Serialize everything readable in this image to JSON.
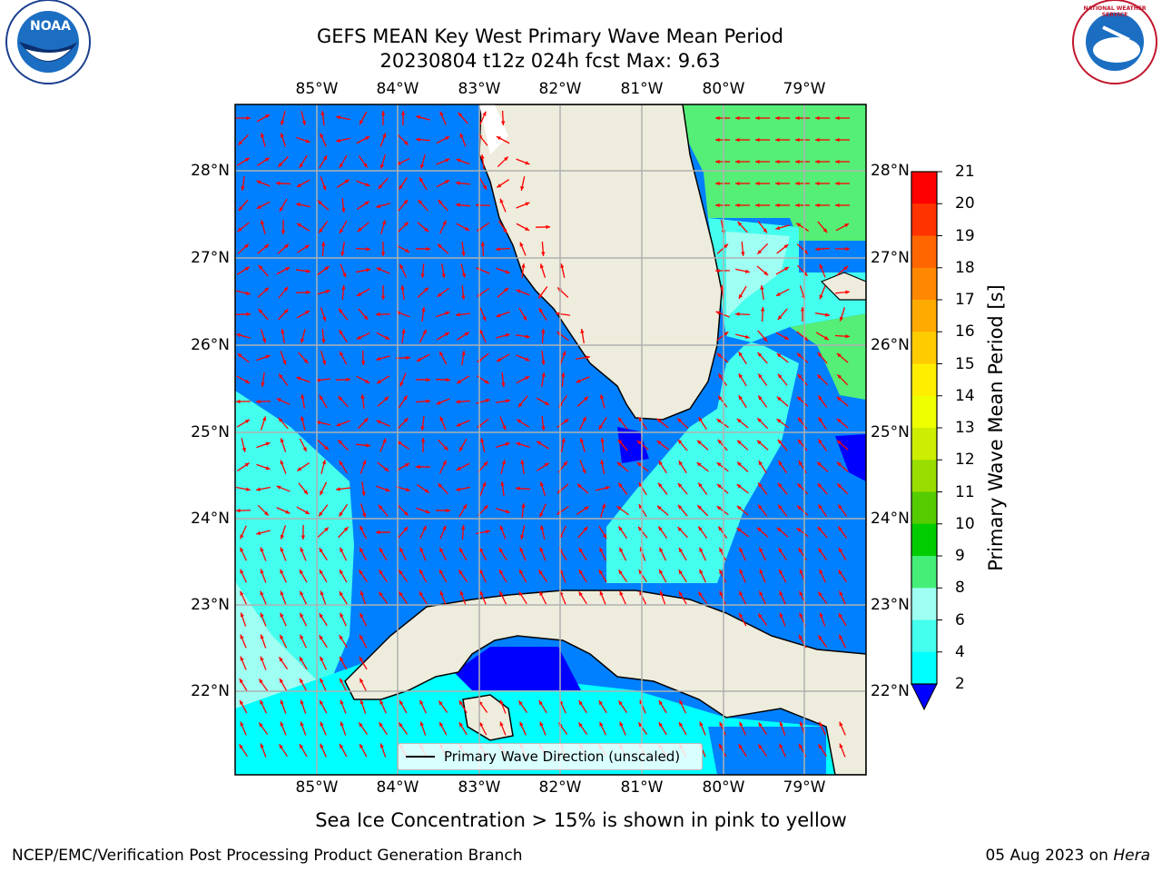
{
  "title": {
    "line1": "GEFS MEAN Key West Primary Wave Mean Period",
    "line2": "20230804 t12z 024h fcst   Max: 9.63"
  },
  "map": {
    "lon_labels": [
      "85°W",
      "84°W",
      "83°W",
      "82°W",
      "81°W",
      "80°W",
      "79°W"
    ],
    "lat_labels": [
      "28°N",
      "27°N",
      "26°N",
      "25°N",
      "24°N",
      "23°N",
      "22°N"
    ],
    "legend_label": "Primary Wave Direction (unscaled)",
    "arrow_color": "#ff0000",
    "land_color": "#eeecdc"
  },
  "colorbar": {
    "title": "Primary Wave Mean Period [s]",
    "ticks": [
      "21",
      "20",
      "19",
      "18",
      "17",
      "16",
      "15",
      "14",
      "13",
      "12",
      "11",
      "10",
      "9",
      "8",
      "6",
      "4",
      "2"
    ],
    "colors": [
      "#ff0000",
      "#ff3300",
      "#ff6600",
      "#ff8800",
      "#ffaa00",
      "#ffcc00",
      "#ffee00",
      "#eeff00",
      "#ccee00",
      "#99dd00",
      "#55cc00",
      "#00cc00",
      "#44ee77",
      "#9ffff2",
      "#44ffee",
      "#00ffff",
      "#0080ff"
    ],
    "below_color": "#0000ff"
  },
  "note": "Sea Ice Concentration > 15% is shown in pink to yellow",
  "footer": {
    "left": "NCEP/EMC/Verification Post Processing Product Generation Branch",
    "date": "05 Aug 2023 on ",
    "machine": "Hera"
  },
  "logos": {
    "left": "NOAA",
    "right": "NATIONAL WEATHER SERVICE"
  }
}
